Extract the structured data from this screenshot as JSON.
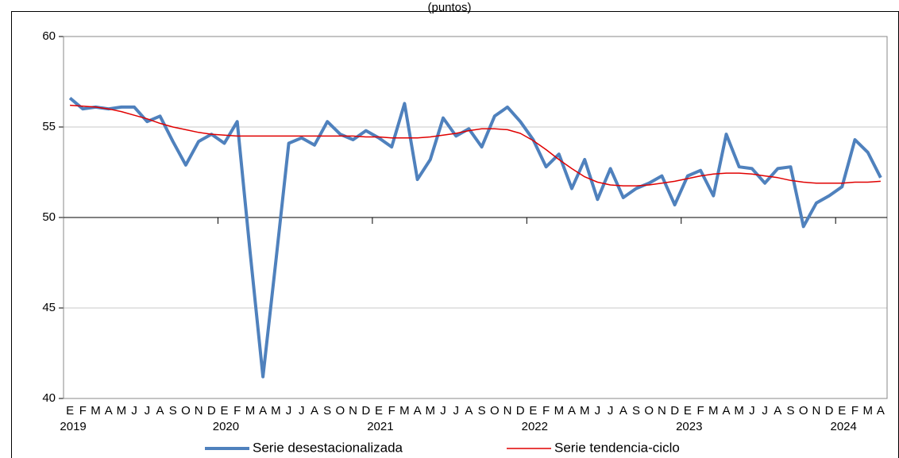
{
  "chart_data": {
    "type": "line",
    "title": "(puntos)",
    "categories": [
      "E",
      "F",
      "M",
      "A",
      "M",
      "J",
      "J",
      "A",
      "S",
      "O",
      "N",
      "D",
      "E",
      "F",
      "M",
      "A",
      "M",
      "J",
      "J",
      "A",
      "S",
      "O",
      "N",
      "D",
      "E",
      "F",
      "M",
      "A",
      "M",
      "J",
      "J",
      "A",
      "S",
      "O",
      "N",
      "D",
      "E",
      "F",
      "M",
      "A",
      "M",
      "J",
      "J",
      "A",
      "S",
      "O",
      "N",
      "D",
      "E",
      "F",
      "M",
      "A",
      "M",
      "J",
      "J",
      "A",
      "S",
      "O",
      "N",
      "D",
      "E",
      "F",
      "M",
      "A"
    ],
    "years": [
      "2019",
      "2020",
      "2021",
      "2022",
      "2023",
      "2024"
    ],
    "series": [
      {
        "name": "Serie desestacionalizada",
        "color": "#4f81bd",
        "width": 4,
        "values": [
          56.6,
          56.0,
          56.1,
          56.0,
          56.1,
          56.1,
          55.3,
          55.6,
          54.2,
          52.9,
          54.2,
          54.6,
          54.1,
          55.3,
          48.1,
          41.2,
          47.6,
          54.1,
          54.4,
          54.0,
          55.3,
          54.6,
          54.3,
          54.8,
          54.4,
          53.9,
          56.3,
          52.1,
          53.2,
          55.5,
          54.5,
          54.9,
          53.9,
          55.6,
          56.1,
          55.3,
          54.3,
          52.8,
          53.5,
          51.6,
          53.2,
          51.0,
          52.7,
          51.1,
          51.6,
          51.9,
          52.3,
          50.7,
          52.3,
          52.6,
          51.2,
          54.6,
          52.8,
          52.7,
          51.9,
          52.7,
          52.8,
          49.5,
          50.8,
          51.2,
          51.7,
          54.3,
          53.6,
          52.2
        ]
      },
      {
        "name": "Serie tendencia-ciclo",
        "color": "#e00000",
        "width": 1.5,
        "values": [
          56.2,
          56.15,
          56.1,
          56.0,
          55.85,
          55.65,
          55.45,
          55.2,
          55.0,
          54.85,
          54.7,
          54.6,
          54.55,
          54.5,
          54.5,
          54.5,
          54.5,
          54.5,
          54.5,
          54.5,
          54.5,
          54.5,
          54.5,
          54.45,
          54.45,
          54.4,
          54.4,
          54.4,
          54.45,
          54.55,
          54.65,
          54.8,
          54.9,
          54.9,
          54.85,
          54.65,
          54.25,
          53.75,
          53.2,
          52.7,
          52.25,
          51.95,
          51.8,
          51.75,
          51.75,
          51.8,
          51.9,
          52.0,
          52.15,
          52.3,
          52.4,
          52.45,
          52.45,
          52.4,
          52.3,
          52.2,
          52.05,
          51.95,
          51.9,
          51.9,
          51.9,
          51.95,
          51.95,
          52.0
        ]
      }
    ],
    "ylim": [
      40,
      60
    ],
    "yticks": [
      40,
      45,
      50,
      55,
      60
    ],
    "grid": true,
    "x_axis_crossing": 50,
    "legend": "bottom"
  }
}
